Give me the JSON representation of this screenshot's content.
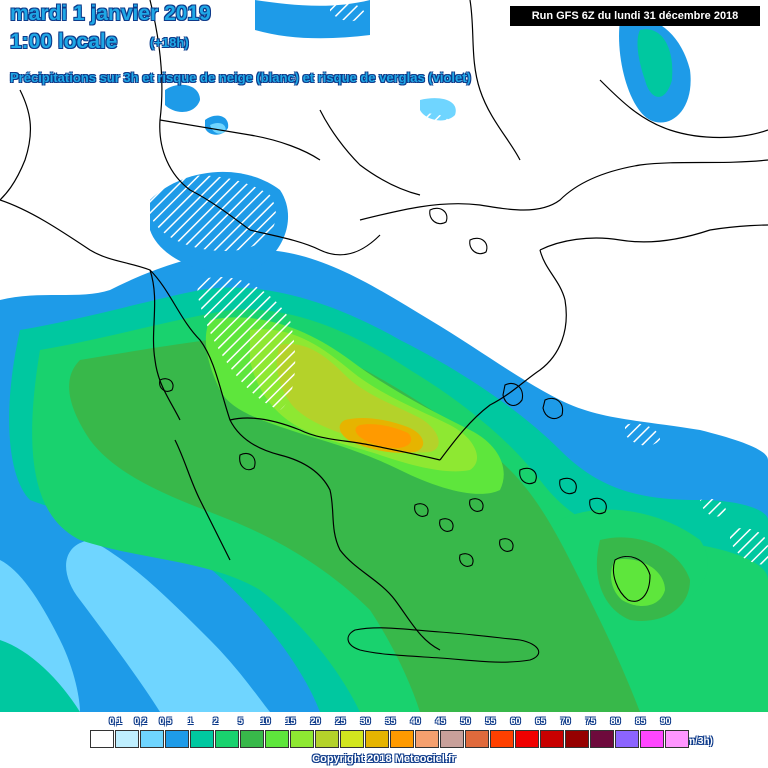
{
  "header": {
    "date": "mardi 1 janvier 2019",
    "local_time": "1:00 locale",
    "offset": "(+18h)",
    "subtitle": "Précipitations sur 3h et risque de neige (blanc) et risque de verglas (violet)",
    "run": "Run GFS 6Z du lundi 31 décembre 2018"
  },
  "legend": {
    "unit": "(mm/3h)",
    "bins": [
      {
        "label": "0,1",
        "color": "#ffffff"
      },
      {
        "label": "0,2",
        "color": "#bfefff"
      },
      {
        "label": "0,5",
        "color": "#6fd5ff"
      },
      {
        "label": "1",
        "color": "#1e9be8"
      },
      {
        "label": "2",
        "color": "#00c8a0"
      },
      {
        "label": "5",
        "color": "#19d26e"
      },
      {
        "label": "10",
        "color": "#38b84a"
      },
      {
        "label": "15",
        "color": "#5ee63c"
      },
      {
        "label": "20",
        "color": "#8ee832"
      },
      {
        "label": "25",
        "color": "#b4d22a"
      },
      {
        "label": "30",
        "color": "#d2e61e"
      },
      {
        "label": "35",
        "color": "#e6b400"
      },
      {
        "label": "40",
        "color": "#ff9a00"
      },
      {
        "label": "45",
        "color": "#f5a06e"
      },
      {
        "label": "50",
        "color": "#c8a09a"
      },
      {
        "label": "55",
        "color": "#e06a3c"
      },
      {
        "label": "60",
        "color": "#ff4000"
      },
      {
        "label": "65",
        "color": "#f00000"
      },
      {
        "label": "70",
        "color": "#c80000"
      },
      {
        "label": "75",
        "color": "#960000"
      },
      {
        "label": "80",
        "color": "#6e0a3c"
      },
      {
        "label": "85",
        "color": "#8c64ff"
      },
      {
        "label": "90",
        "color": "#ff46ff"
      },
      {
        "label": "",
        "color": "#ff96ff"
      }
    ]
  },
  "footer": {
    "copyright": "Copyright 2018 Meteociel.fr"
  },
  "colors": {
    "ocean_blue": "#1e9be8",
    "light_blue": "#6fd5ff",
    "cyan": "#00c8a0",
    "green": "#19d26e",
    "dark_green": "#38b84a",
    "yellow_green": "#b4d22a",
    "orange": "#ff9a00",
    "coastline": "#000000",
    "land": "#ffffff"
  }
}
